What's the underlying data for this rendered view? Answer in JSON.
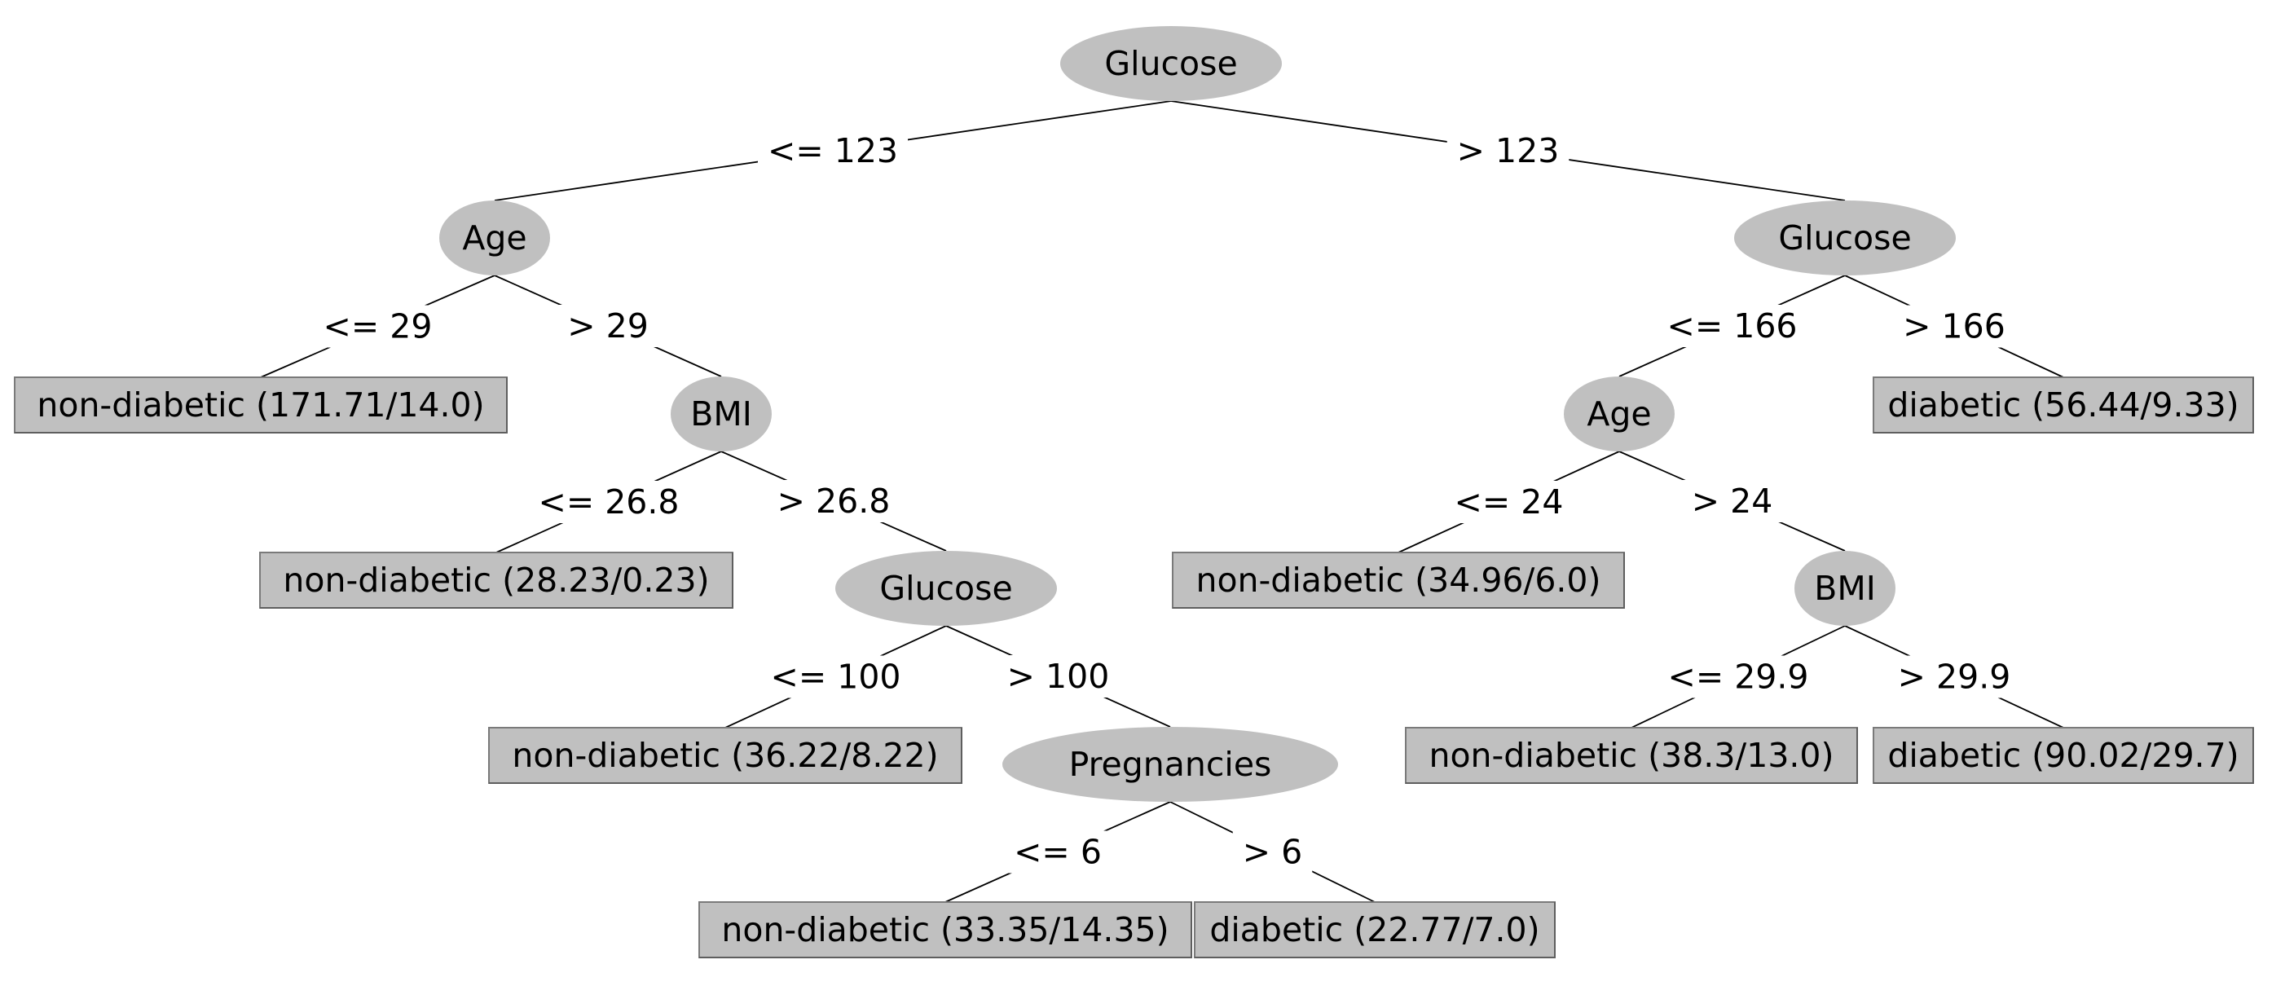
{
  "colors": {
    "node_fill": "#c0c0c0",
    "leaf_fill": "#c0c0c0",
    "leaf_border": "#7a7a7a",
    "edge": "#000000",
    "text": "#000000",
    "background": "#ffffff"
  },
  "tree": {
    "nodes": [
      {
        "id": "n0",
        "type": "split",
        "label": "Glucose"
      },
      {
        "id": "n1",
        "type": "split",
        "label": "Age"
      },
      {
        "id": "n2",
        "type": "leaf",
        "label": "non-diabetic (171.71/14.0)"
      },
      {
        "id": "n3",
        "type": "split",
        "label": "BMI"
      },
      {
        "id": "n4",
        "type": "leaf",
        "label": "non-diabetic (28.23/0.23)"
      },
      {
        "id": "n5",
        "type": "split",
        "label": "Glucose"
      },
      {
        "id": "n6",
        "type": "leaf",
        "label": "non-diabetic (36.22/8.22)"
      },
      {
        "id": "n7",
        "type": "split",
        "label": "Pregnancies"
      },
      {
        "id": "n8",
        "type": "leaf",
        "label": "non-diabetic (33.35/14.35)"
      },
      {
        "id": "n9",
        "type": "leaf",
        "label": "diabetic (22.77/7.0)"
      },
      {
        "id": "n10",
        "type": "split",
        "label": "Glucose"
      },
      {
        "id": "n11",
        "type": "split",
        "label": "Age"
      },
      {
        "id": "n12",
        "type": "leaf",
        "label": "non-diabetic (34.96/6.0)"
      },
      {
        "id": "n13",
        "type": "split",
        "label": "BMI"
      },
      {
        "id": "n14",
        "type": "leaf",
        "label": "non-diabetic (38.3/13.0)"
      },
      {
        "id": "n15",
        "type": "leaf",
        "label": "diabetic (90.02/29.7)"
      },
      {
        "id": "n16",
        "type": "leaf",
        "label": "diabetic (56.44/9.33)"
      }
    ],
    "edges": [
      {
        "from": "n0",
        "to": "n1",
        "label": "<= 123"
      },
      {
        "from": "n0",
        "to": "n10",
        "label": "> 123"
      },
      {
        "from": "n1",
        "to": "n2",
        "label": "<= 29"
      },
      {
        "from": "n1",
        "to": "n3",
        "label": "> 29"
      },
      {
        "from": "n3",
        "to": "n4",
        "label": "<= 26.8"
      },
      {
        "from": "n3",
        "to": "n5",
        "label": "> 26.8"
      },
      {
        "from": "n5",
        "to": "n6",
        "label": "<= 100"
      },
      {
        "from": "n5",
        "to": "n7",
        "label": "> 100"
      },
      {
        "from": "n7",
        "to": "n8",
        "label": "<= 6"
      },
      {
        "from": "n7",
        "to": "n9",
        "label": "> 6"
      },
      {
        "from": "n10",
        "to": "n11",
        "label": "<= 166"
      },
      {
        "from": "n10",
        "to": "n16",
        "label": "> 166"
      },
      {
        "from": "n11",
        "to": "n12",
        "label": "<= 24"
      },
      {
        "from": "n11",
        "to": "n13",
        "label": "> 24"
      },
      {
        "from": "n13",
        "to": "n14",
        "label": "<= 29.9"
      },
      {
        "from": "n13",
        "to": "n15",
        "label": "> 29.9"
      }
    ]
  }
}
